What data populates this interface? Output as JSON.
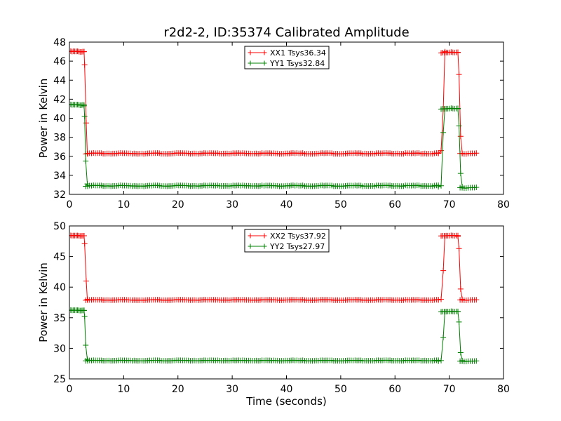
{
  "chart_data": [
    {
      "type": "line",
      "title": "r2d2-2, ID:35374 Calibrated Amplitude",
      "xlabel": "",
      "ylabel": "Power in Kelvin",
      "xlim": [
        0,
        80
      ],
      "ylim": [
        32,
        48
      ],
      "xticks": [
        0,
        10,
        20,
        30,
        40,
        50,
        60,
        70,
        80
      ],
      "yticks": [
        32,
        34,
        36,
        38,
        40,
        42,
        44,
        46,
        48
      ],
      "grid": false,
      "legend_position": "top-center",
      "x_segments": [
        {
          "start": 0,
          "end": 2.7,
          "count": 12
        },
        {
          "start": 3.0,
          "end": 68.0,
          "count": 183
        },
        {
          "start": 68.5,
          "end": 71.6,
          "count": 11
        },
        {
          "start": 72.0,
          "end": 75.0,
          "count": 9
        }
      ],
      "series": [
        {
          "name": "XX1 Tsys36.34",
          "color": "#ff0000",
          "segments": [
            {
              "type": "flat",
              "level": 47.0
            },
            {
              "type": "transition",
              "points": [
                [
                  2.7,
                  47.0
                ],
                [
                  2.8,
                  45.6
                ],
                [
                  3.1,
                  39.5
                ],
                [
                  3.3,
                  36.3
                ]
              ]
            },
            {
              "type": "flat",
              "level": 36.3
            },
            {
              "type": "transition",
              "points": [
                [
                  68.0,
                  36.3
                ],
                [
                  68.5,
                  36.6
                ],
                [
                  68.9,
                  41.0
                ],
                [
                  69.2,
                  47.0
                ]
              ]
            },
            {
              "type": "flat",
              "level": 46.9
            },
            {
              "type": "transition",
              "points": [
                [
                  71.6,
                  46.9
                ],
                [
                  71.8,
                  44.6
                ],
                [
                  72.1,
                  38.1
                ],
                [
                  72.4,
                  36.3
                ]
              ]
            },
            {
              "type": "flat",
              "level": 36.3
            }
          ]
        },
        {
          "name": "YY1 Tsys32.84",
          "color": "#008000",
          "segments": [
            {
              "type": "flat",
              "level": 41.4
            },
            {
              "type": "transition",
              "points": [
                [
                  2.7,
                  41.3
                ],
                [
                  2.8,
                  40.2
                ],
                [
                  3.0,
                  35.5
                ],
                [
                  3.3,
                  33.1
                ]
              ]
            },
            {
              "type": "flat",
              "level": 32.9
            },
            {
              "type": "transition",
              "points": [
                [
                  68.0,
                  32.8
                ],
                [
                  68.5,
                  32.9
                ],
                [
                  68.9,
                  38.5
                ],
                [
                  69.2,
                  41.0
                ]
              ]
            },
            {
              "type": "flat",
              "level": 41.0
            },
            {
              "type": "transition",
              "points": [
                [
                  71.6,
                  41.0
                ],
                [
                  71.8,
                  39.2
                ],
                [
                  72.1,
                  34.2
                ],
                [
                  72.4,
                  32.8
                ]
              ]
            },
            {
              "type": "flat",
              "level": 32.7
            }
          ]
        }
      ]
    },
    {
      "type": "line",
      "title": "",
      "xlabel": "Time (seconds)",
      "ylabel": "Power in Kelvin",
      "xlim": [
        0,
        80
      ],
      "ylim": [
        25,
        50
      ],
      "xticks": [
        0,
        10,
        20,
        30,
        40,
        50,
        60,
        70,
        80
      ],
      "yticks": [
        25,
        30,
        35,
        40,
        45,
        50
      ],
      "grid": false,
      "legend_position": "top-center",
      "x_segments": [
        {
          "start": 0,
          "end": 2.7,
          "count": 12
        },
        {
          "start": 3.0,
          "end": 68.0,
          "count": 183
        },
        {
          "start": 68.5,
          "end": 71.6,
          "count": 11
        },
        {
          "start": 72.0,
          "end": 75.0,
          "count": 9
        }
      ],
      "series": [
        {
          "name": "XX2 Tsys37.92",
          "color": "#ff0000",
          "segments": [
            {
              "type": "flat",
              "level": 48.4
            },
            {
              "type": "transition",
              "points": [
                [
                  2.7,
                  48.4
                ],
                [
                  2.8,
                  47.1
                ],
                [
                  3.1,
                  41.0
                ],
                [
                  3.3,
                  38.0
                ]
              ]
            },
            {
              "type": "flat",
              "level": 37.9
            },
            {
              "type": "transition",
              "points": [
                [
                  68.0,
                  37.9
                ],
                [
                  68.5,
                  38.0
                ],
                [
                  68.9,
                  42.7
                ],
                [
                  69.2,
                  48.4
                ]
              ]
            },
            {
              "type": "flat",
              "level": 48.4
            },
            {
              "type": "transition",
              "points": [
                [
                  71.6,
                  48.3
                ],
                [
                  71.8,
                  46.3
                ],
                [
                  72.1,
                  39.7
                ],
                [
                  72.4,
                  38.0
                ]
              ]
            },
            {
              "type": "flat",
              "level": 37.9
            }
          ]
        },
        {
          "name": "YY2 Tsys27.97",
          "color": "#008000",
          "segments": [
            {
              "type": "flat",
              "level": 36.2
            },
            {
              "type": "transition",
              "points": [
                [
                  2.7,
                  36.2
                ],
                [
                  2.8,
                  35.2
                ],
                [
                  3.0,
                  30.5
                ],
                [
                  3.3,
                  28.2
                ]
              ]
            },
            {
              "type": "flat",
              "level": 28.0
            },
            {
              "type": "transition",
              "points": [
                [
                  68.0,
                  27.9
                ],
                [
                  68.5,
                  28.0
                ],
                [
                  68.9,
                  31.8
                ],
                [
                  69.2,
                  36.0
                ]
              ]
            },
            {
              "type": "flat",
              "level": 36.0
            },
            {
              "type": "transition",
              "points": [
                [
                  71.6,
                  36.0
                ],
                [
                  71.8,
                  34.3
                ],
                [
                  72.1,
                  29.3
                ],
                [
                  72.4,
                  28.0
                ]
              ]
            },
            {
              "type": "flat",
              "level": 27.9
            }
          ]
        }
      ]
    }
  ]
}
